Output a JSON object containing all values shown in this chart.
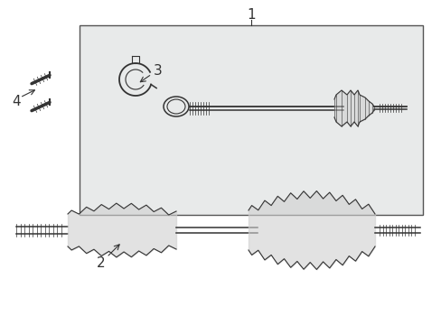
{
  "title": "",
  "background_color": "#f5f5f5",
  "box_color": "#e8e8e8",
  "line_color": "#333333",
  "label_1": "1",
  "label_2": "2",
  "label_3": "3",
  "label_4": "4",
  "label_font_size": 11,
  "fig_width": 4.89,
  "fig_height": 3.6,
  "dpi": 100
}
